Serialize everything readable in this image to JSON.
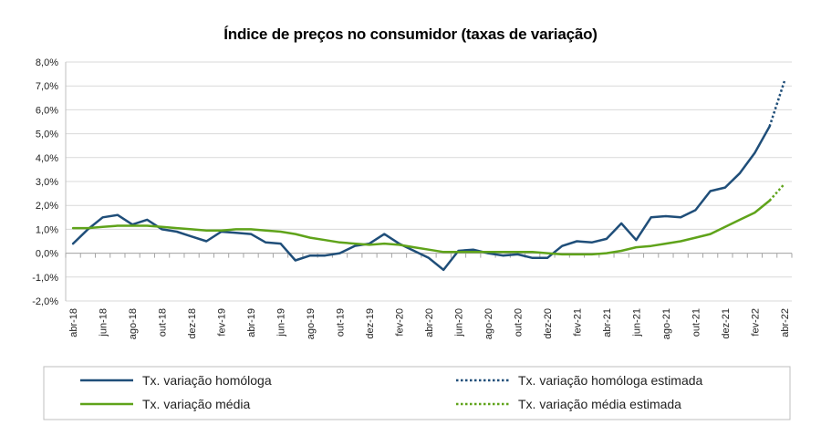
{
  "chart_data": {
    "type": "line",
    "title": "Índice de preços no consumidor  (taxas  de variação)",
    "xlabel": "",
    "ylabel": "",
    "ylim": [
      -2,
      8
    ],
    "y_ticks": [
      "8,0%",
      "7,0%",
      "6,0%",
      "5,0%",
      "4,0%",
      "3,0%",
      "2,0%",
      "1,0%",
      "0,0%",
      "-1,0%",
      "-2,0%"
    ],
    "x_tick_labels": [
      "abr-18",
      "jun-18",
      "ago-18",
      "out-18",
      "dez-18",
      "fev-19",
      "abr-19",
      "jun-19",
      "ago-19",
      "out-19",
      "dez-19",
      "fev-20",
      "abr-20",
      "jun-20",
      "ago-20",
      "out-20",
      "dez-20",
      "fev-21",
      "abr-21",
      "jun-21",
      "ago-21",
      "out-21",
      "dez-21",
      "fev-22",
      "abr-22"
    ],
    "x": [
      "abr-18",
      "mai-18",
      "jun-18",
      "jul-18",
      "ago-18",
      "set-18",
      "out-18",
      "nov-18",
      "dez-18",
      "jan-19",
      "fev-19",
      "mar-19",
      "abr-19",
      "mai-19",
      "jun-19",
      "jul-19",
      "ago-19",
      "set-19",
      "out-19",
      "nov-19",
      "dez-19",
      "jan-20",
      "fev-20",
      "mar-20",
      "abr-20",
      "mai-20",
      "jun-20",
      "jul-20",
      "ago-20",
      "set-20",
      "out-20",
      "nov-20",
      "dez-20",
      "jan-21",
      "fev-21",
      "mar-21",
      "abr-21",
      "mai-21",
      "jun-21",
      "jul-21",
      "ago-21",
      "set-21",
      "out-21",
      "nov-21",
      "dez-21",
      "jan-22",
      "fev-22",
      "mar-22",
      "abr-22"
    ],
    "series": [
      {
        "name": "Tx. variação homóloga",
        "color": "#1f4e79",
        "style": "solid",
        "values": [
          0.4,
          1.0,
          1.5,
          1.6,
          1.2,
          1.4,
          1.0,
          0.9,
          0.7,
          0.5,
          0.9,
          0.85,
          0.8,
          0.45,
          0.4,
          -0.3,
          -0.1,
          -0.1,
          0.0,
          0.3,
          0.4,
          0.8,
          0.4,
          0.1,
          -0.2,
          -0.7,
          0.1,
          0.15,
          0.0,
          -0.1,
          -0.05,
          -0.2,
          -0.2,
          0.3,
          0.5,
          0.45,
          0.6,
          1.25,
          0.55,
          1.5,
          1.55,
          1.5,
          1.8,
          2.6,
          2.75,
          3.35,
          4.2,
          5.3,
          null
        ]
      },
      {
        "name": "Tx. variação homóloga estimada",
        "color": "#1f4e79",
        "style": "dotted",
        "values": [
          null,
          null,
          null,
          null,
          null,
          null,
          null,
          null,
          null,
          null,
          null,
          null,
          null,
          null,
          null,
          null,
          null,
          null,
          null,
          null,
          null,
          null,
          null,
          null,
          null,
          null,
          null,
          null,
          null,
          null,
          null,
          null,
          null,
          null,
          null,
          null,
          null,
          null,
          null,
          null,
          null,
          null,
          null,
          null,
          null,
          null,
          null,
          5.3,
          7.2
        ]
      },
      {
        "name": "Tx. variação média",
        "color": "#5fa31a",
        "style": "solid",
        "values": [
          1.05,
          1.05,
          1.1,
          1.15,
          1.15,
          1.15,
          1.1,
          1.05,
          1.0,
          0.95,
          0.95,
          1.0,
          1.0,
          0.95,
          0.9,
          0.8,
          0.65,
          0.55,
          0.45,
          0.4,
          0.35,
          0.4,
          0.35,
          0.25,
          0.15,
          0.05,
          0.05,
          0.05,
          0.05,
          0.05,
          0.05,
          0.05,
          0.0,
          -0.05,
          -0.05,
          -0.05,
          0.0,
          0.1,
          0.25,
          0.3,
          0.4,
          0.5,
          0.65,
          0.8,
          1.1,
          1.4,
          1.7,
          2.2,
          null
        ]
      },
      {
        "name": "Tx. variação média  estimada",
        "color": "#5fa31a",
        "style": "dotted",
        "values": [
          null,
          null,
          null,
          null,
          null,
          null,
          null,
          null,
          null,
          null,
          null,
          null,
          null,
          null,
          null,
          null,
          null,
          null,
          null,
          null,
          null,
          null,
          null,
          null,
          null,
          null,
          null,
          null,
          null,
          null,
          null,
          null,
          null,
          null,
          null,
          null,
          null,
          null,
          null,
          null,
          null,
          null,
          null,
          null,
          null,
          null,
          null,
          2.2,
          2.9
        ]
      }
    ],
    "legend": {
      "position": "bottom",
      "entries": [
        "Tx. variação homóloga",
        "Tx. variação homóloga estimada",
        "Tx. variação média",
        "Tx. variação média  estimada"
      ]
    },
    "grid": "horizontal"
  }
}
